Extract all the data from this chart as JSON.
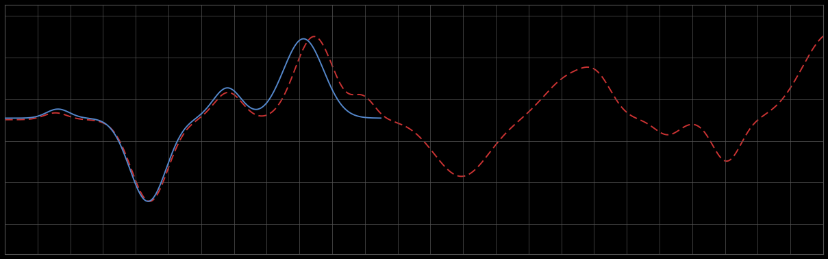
{
  "background_color": "#000000",
  "plot_bg_color": "#000000",
  "grid_color": "#555555",
  "line1_color": "#5588CC",
  "line2_color": "#CC3333",
  "line1_style": "solid",
  "line2_style": "dashed",
  "line_width": 1.4,
  "figsize": [
    12.09,
    3.78
  ],
  "dpi": 100,
  "xlim": [
    0,
    10
  ],
  "ylim": [
    -1.5,
    1.8
  ],
  "x_grid_spacing": 0.4,
  "y_grid_spacing": 0.55
}
